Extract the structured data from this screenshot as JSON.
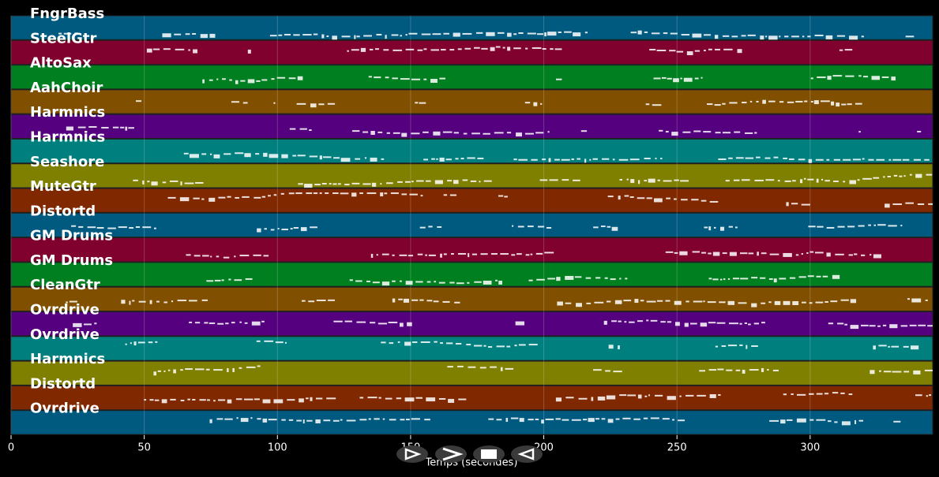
{
  "chart_data": {
    "type": "timeline",
    "tracks": [
      {
        "name": "FngrBass",
        "color": "#005a80"
      },
      {
        "name": "SteelGtr",
        "color": "#80002e"
      },
      {
        "name": "AltoSax",
        "color": "#007f20"
      },
      {
        "name": "AahChoir",
        "color": "#805000"
      },
      {
        "name": "Harmnics",
        "color": "#55007f"
      },
      {
        "name": "Harmnics",
        "color": "#007f7f"
      },
      {
        "name": "Seashore",
        "color": "#7f7f00"
      },
      {
        "name": "MuteGtr",
        "color": "#802800"
      },
      {
        "name": "Distortd",
        "color": "#005a80"
      },
      {
        "name": "GM Drums",
        "color": "#80002e"
      },
      {
        "name": "GM Drums",
        "color": "#007f20"
      },
      {
        "name": "CleanGtr",
        "color": "#805000"
      },
      {
        "name": "Ovrdrive",
        "color": "#55007f"
      },
      {
        "name": "Ovrdrive",
        "color": "#007f7f"
      },
      {
        "name": "Harmnics",
        "color": "#7f7f00"
      },
      {
        "name": "Distortd",
        "color": "#802800"
      },
      {
        "name": "Ovrdrive",
        "color": "#005a80"
      }
    ],
    "xlim": [
      0,
      346
    ],
    "xticks": [
      0,
      50,
      100,
      150,
      200,
      250,
      300
    ],
    "xlabel": "Temps (secondes)"
  }
}
